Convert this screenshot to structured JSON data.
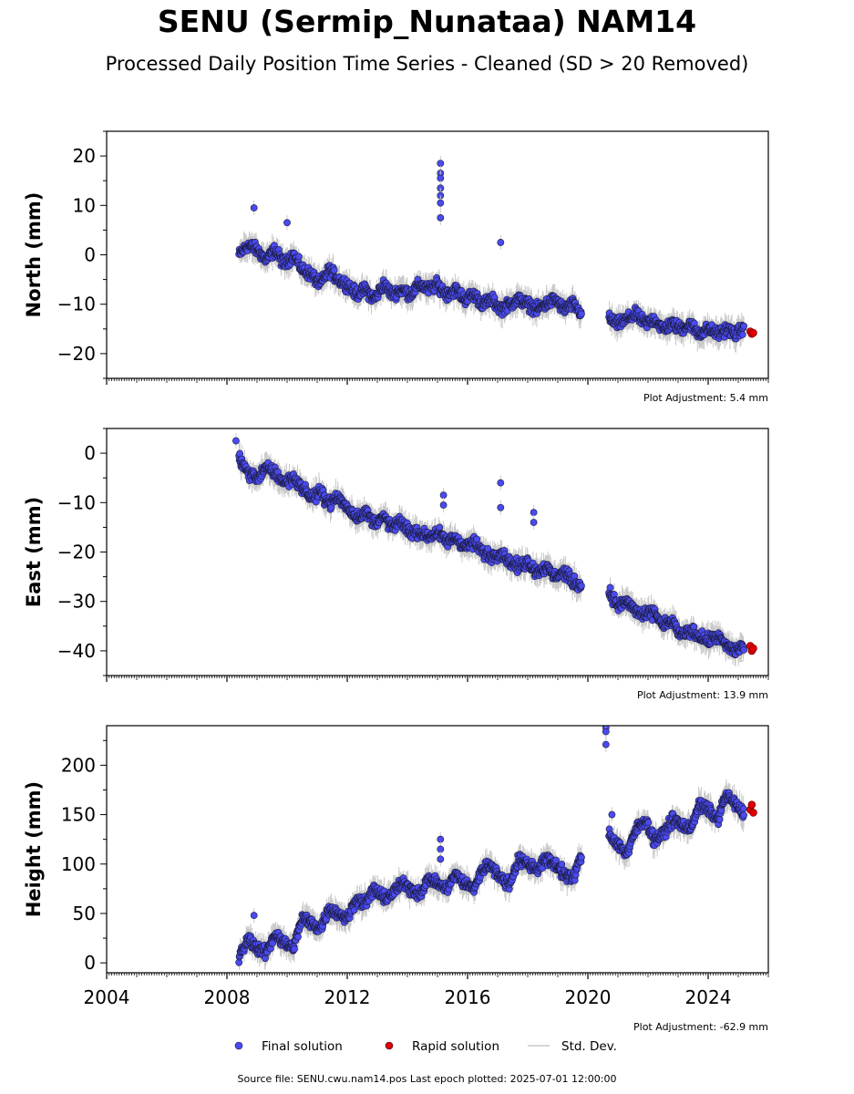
{
  "title": "SENU (Sermip_Nunataa) NAM14",
  "subtitle": "Processed Daily Position Time Series - Cleaned (SD > 20 Removed)",
  "source_text": "Source file: SENU.cwu.nam14.pos  Last epoch plotted: 2025-07-01 12:00:00",
  "colors": {
    "final": "#4a4aee",
    "rapid": "#e00000",
    "std_dev": "#c8c8c8",
    "marker_edge": "#1a1a3a"
  },
  "legend": {
    "placement": "bottom-center",
    "items": [
      {
        "label": "Final solution",
        "marker": "blue-dot"
      },
      {
        "label": "Rapid solution",
        "marker": "red-dot"
      },
      {
        "label": "Std. Dev.",
        "marker": "gray-line"
      }
    ]
  },
  "chart_data": [
    {
      "type": "scatter",
      "name": "north",
      "ylabel": "North (mm)",
      "xlim": [
        2004,
        2026
      ],
      "ylim": [
        -25,
        25
      ],
      "yticks": [
        -20,
        -10,
        0,
        10,
        20
      ],
      "xtick_labels_shown": false,
      "adjustment_text": "Plot Adjustment: 5.4 mm",
      "series": [
        {
          "name": "Final solution",
          "x": [
            2008.4,
            2008.7,
            2009.0,
            2009.3,
            2009.6,
            2009.9,
            2010.2,
            2010.5,
            2010.8,
            2011.1,
            2011.4,
            2011.7,
            2012.0,
            2012.3,
            2012.6,
            2012.9,
            2013.2,
            2013.5,
            2013.8,
            2014.1,
            2014.4,
            2014.7,
            2015.0,
            2015.3,
            2015.6,
            2015.9,
            2016.2,
            2016.5,
            2016.8,
            2017.1,
            2017.4,
            2017.7,
            2018.0,
            2018.3,
            2018.6,
            2018.9,
            2019.2,
            2019.5,
            2019.8,
            2020.7,
            2021.0,
            2021.3,
            2021.6,
            2021.9,
            2022.2,
            2022.5,
            2022.8,
            2023.1,
            2023.4,
            2023.7,
            2024.0,
            2024.3,
            2024.6,
            2024.9,
            2025.2
          ],
          "y": [
            0,
            2,
            1,
            -1,
            1,
            -2,
            0,
            -3,
            -4,
            -6,
            -3,
            -5,
            -6,
            -8,
            -7,
            -9,
            -6,
            -8,
            -7,
            -8,
            -6,
            -7,
            -6,
            -8,
            -7,
            -9,
            -8,
            -10,
            -9,
            -11,
            -10,
            -9,
            -10,
            -11,
            -10,
            -9,
            -11,
            -10,
            -12,
            -13,
            -14,
            -13,
            -12,
            -14,
            -13,
            -15,
            -14,
            -15,
            -14,
            -16,
            -15,
            -16,
            -15,
            -16,
            -15
          ]
        },
        {
          "name": "Rapid solution",
          "x": [
            2025.4,
            2025.45,
            2025.5
          ],
          "y": [
            -15.5,
            -16,
            -15.8
          ]
        }
      ],
      "outliers": {
        "x": [
          2008.9,
          2010.0,
          2015.1,
          2015.1,
          2015.1,
          2015.1,
          2015.1,
          2015.1,
          2015.1,
          2017.1
        ],
        "y": [
          9.5,
          6.5,
          18.5,
          16.5,
          15.5,
          13.5,
          12,
          10.5,
          7.5,
          2.5
        ]
      }
    },
    {
      "type": "scatter",
      "name": "east",
      "ylabel": "East (mm)",
      "xlim": [
        2004,
        2026
      ],
      "ylim": [
        -45,
        5
      ],
      "yticks": [
        -40,
        -30,
        -20,
        -10,
        0
      ],
      "xtick_labels_shown": false,
      "adjustment_text": "Plot Adjustment: 13.9 mm",
      "series": [
        {
          "name": "Final solution",
          "x": [
            2008.4,
            2008.7,
            2009.0,
            2009.3,
            2009.6,
            2009.9,
            2010.2,
            2010.5,
            2010.8,
            2011.1,
            2011.4,
            2011.7,
            2012.0,
            2012.3,
            2012.6,
            2012.9,
            2013.2,
            2013.5,
            2013.8,
            2014.1,
            2014.4,
            2014.7,
            2015.0,
            2015.3,
            2015.6,
            2015.9,
            2016.2,
            2016.5,
            2016.8,
            2017.1,
            2017.4,
            2017.7,
            2018.0,
            2018.3,
            2018.6,
            2018.9,
            2019.2,
            2019.5,
            2019.8,
            2020.7,
            2021.0,
            2021.3,
            2021.6,
            2021.9,
            2022.2,
            2022.5,
            2022.8,
            2023.1,
            2023.4,
            2023.7,
            2024.0,
            2024.3,
            2024.6,
            2024.9,
            2025.2
          ],
          "y": [
            -1,
            -4,
            -5,
            -3,
            -4,
            -6,
            -5,
            -7,
            -9,
            -8,
            -10,
            -9,
            -11,
            -13,
            -12,
            -14,
            -13,
            -15,
            -14,
            -16,
            -16,
            -17,
            -16,
            -18,
            -17,
            -19,
            -18,
            -20,
            -21,
            -20,
            -22,
            -23,
            -22,
            -24,
            -23,
            -25,
            -24,
            -26,
            -27,
            -28,
            -31,
            -30,
            -32,
            -33,
            -32,
            -35,
            -34,
            -37,
            -36,
            -37,
            -38,
            -37,
            -39,
            -40,
            -39
          ]
        },
        {
          "name": "Rapid solution",
          "x": [
            2025.4,
            2025.45,
            2025.5
          ],
          "y": [
            -39,
            -40,
            -39.5
          ]
        }
      ],
      "outliers": {
        "x": [
          2008.3,
          2015.2,
          2015.2,
          2017.1,
          2017.1,
          2018.2,
          2018.2
        ],
        "y": [
          2.5,
          -8.5,
          -10.5,
          -6,
          -11,
          -12,
          -14
        ]
      }
    },
    {
      "type": "scatter",
      "name": "height",
      "ylabel": "Height (mm)",
      "xlim": [
        2004,
        2026
      ],
      "ylim": [
        -10,
        240
      ],
      "yticks": [
        0,
        50,
        100,
        150,
        200
      ],
      "xticks": [
        2004,
        2008,
        2012,
        2016,
        2020,
        2024
      ],
      "xtick_labels_shown": true,
      "adjustment_text": "Plot Adjustment: -62.9 mm",
      "series": [
        {
          "name": "Final solution",
          "x": [
            2008.4,
            2008.7,
            2009.0,
            2009.3,
            2009.6,
            2009.9,
            2010.2,
            2010.5,
            2010.8,
            2011.1,
            2011.4,
            2011.7,
            2012.0,
            2012.3,
            2012.6,
            2012.9,
            2013.2,
            2013.5,
            2013.8,
            2014.1,
            2014.4,
            2014.7,
            2015.0,
            2015.3,
            2015.6,
            2015.9,
            2016.2,
            2016.5,
            2016.8,
            2017.1,
            2017.4,
            2017.7,
            2018.0,
            2018.3,
            2018.6,
            2018.9,
            2019.2,
            2019.5,
            2019.8,
            2020.7,
            2021.0,
            2021.3,
            2021.6,
            2021.9,
            2022.2,
            2022.5,
            2022.8,
            2023.1,
            2023.4,
            2023.7,
            2024.0,
            2024.3,
            2024.6,
            2024.9,
            2025.2
          ],
          "y": [
            5,
            25,
            15,
            10,
            30,
            20,
            15,
            45,
            40,
            35,
            55,
            50,
            45,
            65,
            60,
            75,
            65,
            70,
            80,
            75,
            70,
            85,
            80,
            75,
            90,
            80,
            75,
            95,
            100,
            85,
            80,
            105,
            100,
            95,
            105,
            100,
            90,
            85,
            110,
            130,
            120,
            110,
            135,
            145,
            125,
            130,
            145,
            140,
            135,
            160,
            155,
            145,
            170,
            160,
            150
          ]
        },
        {
          "name": "Rapid solution",
          "x": [
            2025.4,
            2025.45,
            2025.5
          ],
          "y": [
            155,
            160,
            152
          ]
        }
      ],
      "outliers": {
        "x": [
          2008.9,
          2015.1,
          2015.1,
          2015.1,
          2020.6,
          2020.6,
          2020.6,
          2020.8
        ],
        "y": [
          48,
          125,
          115,
          105,
          238,
          234,
          221,
          150
        ]
      }
    }
  ]
}
